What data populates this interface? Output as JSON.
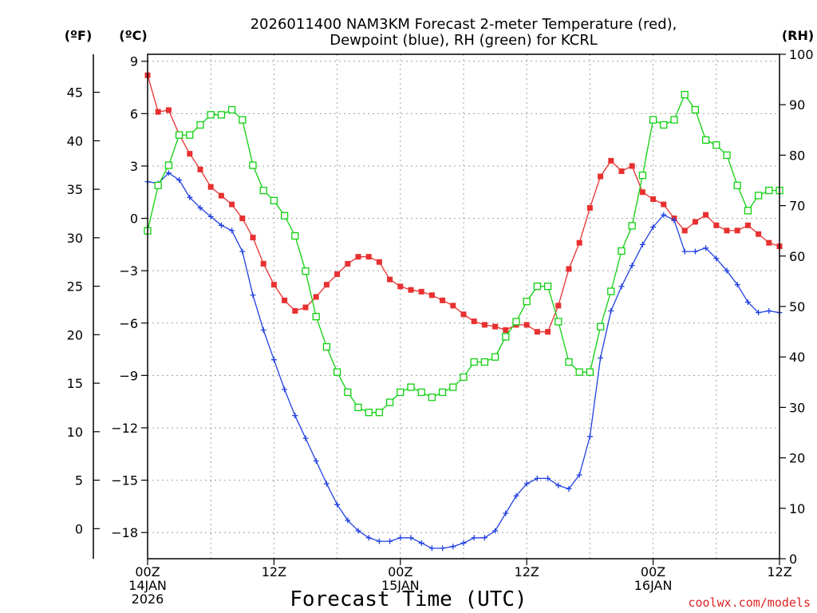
{
  "chart_data": {
    "type": "line",
    "title_line1": "2026011400 NAM3KM Forecast 2-meter Temperature (red),",
    "title_line2": "Dewpoint (blue), RH (green) for KCRL",
    "xlabel": "Forecast Time (UTC)",
    "credit": "coolwx.com/models",
    "units": {
      "fahrenheit": "(ºF)",
      "celsius": "(ºC)",
      "rh": "(RH)"
    },
    "x_hours_range": [
      0,
      60
    ],
    "x_ticks": [
      {
        "hour": 0,
        "label": "00Z",
        "sub1": "14JAN",
        "sub2": "2026"
      },
      {
        "hour": 12,
        "label": "12Z",
        "sub1": "",
        "sub2": ""
      },
      {
        "hour": 24,
        "label": "00Z",
        "sub1": "15JAN",
        "sub2": ""
      },
      {
        "hour": 36,
        "label": "12Z",
        "sub1": "",
        "sub2": ""
      },
      {
        "hour": 48,
        "label": "00Z",
        "sub1": "16JAN",
        "sub2": ""
      },
      {
        "hour": 60,
        "label": "12Z",
        "sub1": "",
        "sub2": ""
      }
    ],
    "celsius_range": [
      -19.5,
      9.4
    ],
    "celsius_ticks": [
      9,
      6,
      3,
      0,
      -3,
      -6,
      -9,
      -12,
      -15,
      -18
    ],
    "fahrenheit_ticks": [
      45,
      40,
      35,
      30,
      25,
      20,
      15,
      10,
      5,
      0
    ],
    "rh_range": [
      0,
      100
    ],
    "rh_ticks": [
      100,
      90,
      80,
      70,
      60,
      50,
      40,
      30,
      20,
      10,
      0
    ],
    "colors": {
      "temperature": "#e83030",
      "dewpoint": "#2040e0",
      "rh": "#10d010",
      "grid": "#a0a0a0"
    },
    "series": [
      {
        "name": "Temperature (°C)",
        "axis": "celsius",
        "marker": "filled-square",
        "values": [
          8.2,
          6.1,
          6.2,
          4.8,
          3.7,
          2.8,
          1.8,
          1.3,
          0.8,
          0.0,
          -1.1,
          -2.6,
          -3.8,
          -4.7,
          -5.3,
          -5.1,
          -4.5,
          -3.8,
          -3.2,
          -2.6,
          -2.2,
          -2.2,
          -2.5,
          -3.5,
          -3.9,
          -4.1,
          -4.2,
          -4.4,
          -4.7,
          -5.0,
          -5.5,
          -5.9,
          -6.1,
          -6.2,
          -6.4,
          -6.1,
          -6.1,
          -6.5,
          -6.5,
          -5.0,
          -2.9,
          -1.4,
          0.6,
          2.4,
          3.3,
          2.7,
          3.0,
          1.5,
          1.1,
          0.8,
          0.0,
          -0.7,
          -0.2,
          0.2,
          -0.4,
          -0.7,
          -0.7,
          -0.4,
          -0.9,
          -1.4,
          -1.6
        ]
      },
      {
        "name": "Dewpoint (°C)",
        "axis": "celsius",
        "marker": "plus",
        "values": [
          2.1,
          2.0,
          2.6,
          2.2,
          1.2,
          0.6,
          0.1,
          -0.4,
          -0.7,
          -1.9,
          -4.4,
          -6.4,
          -8.1,
          -9.8,
          -11.3,
          -12.6,
          -13.9,
          -15.2,
          -16.4,
          -17.3,
          -17.9,
          -18.3,
          -18.5,
          -18.5,
          -18.3,
          -18.3,
          -18.6,
          -18.9,
          -18.9,
          -18.8,
          -18.6,
          -18.3,
          -18.3,
          -17.9,
          -16.9,
          -15.9,
          -15.2,
          -14.9,
          -14.9,
          -15.3,
          -15.5,
          -14.7,
          -12.5,
          -8.0,
          -5.3,
          -3.9,
          -2.7,
          -1.5,
          -0.5,
          0.2,
          -0.1,
          -1.9,
          -1.9,
          -1.7,
          -2.3,
          -3.0,
          -3.8,
          -4.8,
          -5.4,
          -5.3,
          -5.4
        ]
      },
      {
        "name": "RH (%)",
        "axis": "rh",
        "marker": "open-square",
        "values": [
          65,
          74,
          78,
          84,
          84,
          86,
          88,
          88,
          89,
          87,
          78,
          73,
          71,
          68,
          64,
          57,
          48,
          42,
          37,
          33,
          30,
          29,
          29,
          31,
          33,
          34,
          33,
          32,
          33,
          34,
          36,
          39,
          39,
          40,
          44,
          47,
          51,
          54,
          54,
          47,
          39,
          37,
          37,
          46,
          53,
          61,
          66,
          76,
          87,
          86,
          87,
          92,
          89,
          83,
          82,
          80,
          74,
          69,
          72,
          73,
          73
        ]
      }
    ]
  }
}
